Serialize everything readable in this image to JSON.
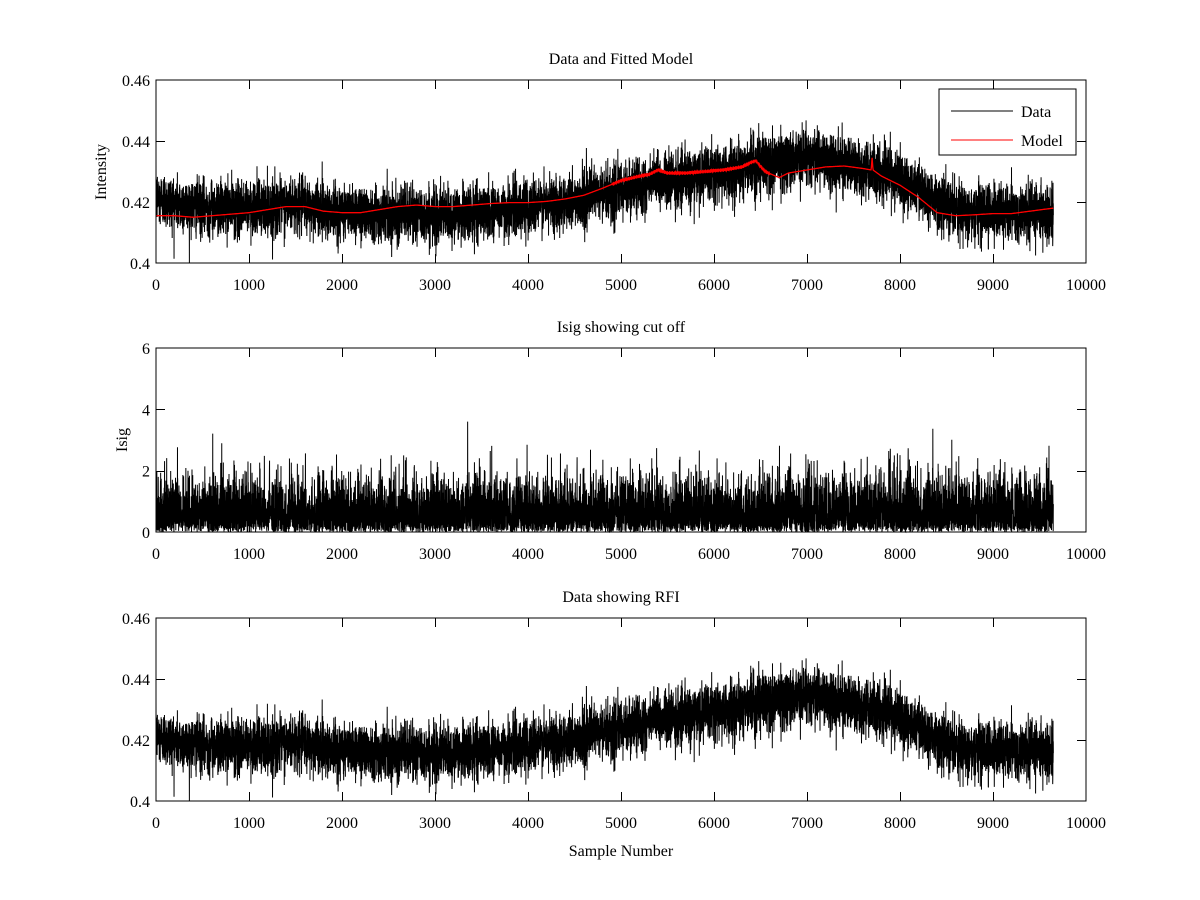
{
  "chart_data": [
    {
      "id": "fitted",
      "type": "line",
      "title": "Data and Fitted Model",
      "xlabel": "",
      "ylabel": "Intensity",
      "xlim": [
        0,
        10000
      ],
      "ylim": [
        0.4,
        0.46
      ],
      "xticks": [
        0,
        1000,
        2000,
        3000,
        4000,
        5000,
        6000,
        7000,
        8000,
        9000,
        10000
      ],
      "xtick_labels": [
        "0",
        "1000",
        "2000",
        "3000",
        "4000",
        "5000",
        "6000",
        "7000",
        "8000",
        "9000",
        "10000"
      ],
      "yticks": [
        0.4,
        0.42,
        0.44,
        0.46
      ],
      "ytick_labels": [
        "0.4",
        "0.42",
        "0.44",
        "0.46"
      ],
      "grid": false,
      "legend": {
        "placement": "top-right",
        "entries": [
          "Data",
          "Model"
        ]
      },
      "series": [
        {
          "name": "Data",
          "color": "#000000",
          "n_samples": 9650,
          "noise_sd": 0.0045,
          "trend_x": [
            0,
            200,
            500,
            1000,
            1500,
            2000,
            2500,
            3000,
            3500,
            4000,
            4500,
            5000,
            5500,
            6000,
            6500,
            7000,
            7500,
            8000,
            8500,
            9000,
            9650
          ],
          "trend_y": [
            0.4215,
            0.4195,
            0.418,
            0.418,
            0.419,
            0.417,
            0.4165,
            0.4155,
            0.4165,
            0.4185,
            0.4205,
            0.424,
            0.427,
            0.429,
            0.4325,
            0.435,
            0.4315,
            0.4275,
            0.4185,
            0.4165,
            0.4165
          ]
        },
        {
          "name": "Model",
          "color": "#ff0000",
          "x": [
            0,
            200,
            400,
            600,
            800,
            1000,
            1200,
            1400,
            1600,
            1800,
            2000,
            2200,
            2400,
            2600,
            2800,
            3000,
            3200,
            3400,
            3600,
            3800,
            4000,
            4200,
            4400,
            4600,
            4800,
            5000,
            5200,
            5300,
            5400,
            5500,
            5700,
            5900,
            6100,
            6300,
            6400,
            6450,
            6550,
            6700,
            6800,
            7000,
            7200,
            7400,
            7600,
            7690,
            7700,
            7710,
            7800,
            8000,
            8200,
            8400,
            8600,
            8800,
            9000,
            9200,
            9400,
            9650
          ],
          "y": [
            0.4155,
            0.4155,
            0.415,
            0.4155,
            0.416,
            0.4165,
            0.4175,
            0.4185,
            0.4185,
            0.417,
            0.4165,
            0.4165,
            0.4175,
            0.4185,
            0.419,
            0.4185,
            0.4185,
            0.419,
            0.4195,
            0.4198,
            0.4198,
            0.4202,
            0.421,
            0.4222,
            0.4245,
            0.427,
            0.4285,
            0.429,
            0.4305,
            0.4295,
            0.4295,
            0.43,
            0.4305,
            0.4315,
            0.433,
            0.4335,
            0.43,
            0.428,
            0.4295,
            0.4305,
            0.4315,
            0.4318,
            0.431,
            0.4305,
            0.4345,
            0.4305,
            0.4285,
            0.4255,
            0.4215,
            0.4165,
            0.4155,
            0.4158,
            0.4162,
            0.4162,
            0.417,
            0.418
          ]
        }
      ]
    },
    {
      "id": "isig",
      "type": "line",
      "title": "Isig showing cut off",
      "xlabel": "",
      "ylabel": "Isig",
      "xlim": [
        0,
        10000
      ],
      "ylim": [
        0,
        6
      ],
      "xticks": [
        0,
        1000,
        2000,
        3000,
        4000,
        5000,
        6000,
        7000,
        8000,
        9000,
        10000
      ],
      "xtick_labels": [
        "0",
        "1000",
        "2000",
        "3000",
        "4000",
        "5000",
        "6000",
        "7000",
        "8000",
        "9000",
        "10000"
      ],
      "yticks": [
        0,
        2,
        4,
        6
      ],
      "ytick_labels": [
        "0",
        "2",
        "4",
        "6"
      ],
      "grid": false,
      "series": [
        {
          "name": "Isig",
          "color": "#000000",
          "n_samples": 9650,
          "distribution": "abs-normal",
          "scale": 0.85,
          "max_observed": 3.6
        }
      ]
    },
    {
      "id": "rfi",
      "type": "line",
      "title": "Data showing RFI",
      "xlabel": "Sample Number",
      "ylabel": "",
      "xlim": [
        0,
        10000
      ],
      "ylim": [
        0.4,
        0.46
      ],
      "xticks": [
        0,
        1000,
        2000,
        3000,
        4000,
        5000,
        6000,
        7000,
        8000,
        9000,
        10000
      ],
      "xtick_labels": [
        "0",
        "1000",
        "2000",
        "3000",
        "4000",
        "5000",
        "6000",
        "7000",
        "8000",
        "9000",
        "10000"
      ],
      "yticks": [
        0.4,
        0.42,
        0.44,
        0.46
      ],
      "ytick_labels": [
        "0.4",
        "0.42",
        "0.44",
        "0.46"
      ],
      "grid": false,
      "series": [
        {
          "name": "Data",
          "color": "#000000",
          "n_samples": 9650,
          "noise_sd": 0.0045,
          "same_as": "fitted.Data"
        }
      ]
    }
  ]
}
